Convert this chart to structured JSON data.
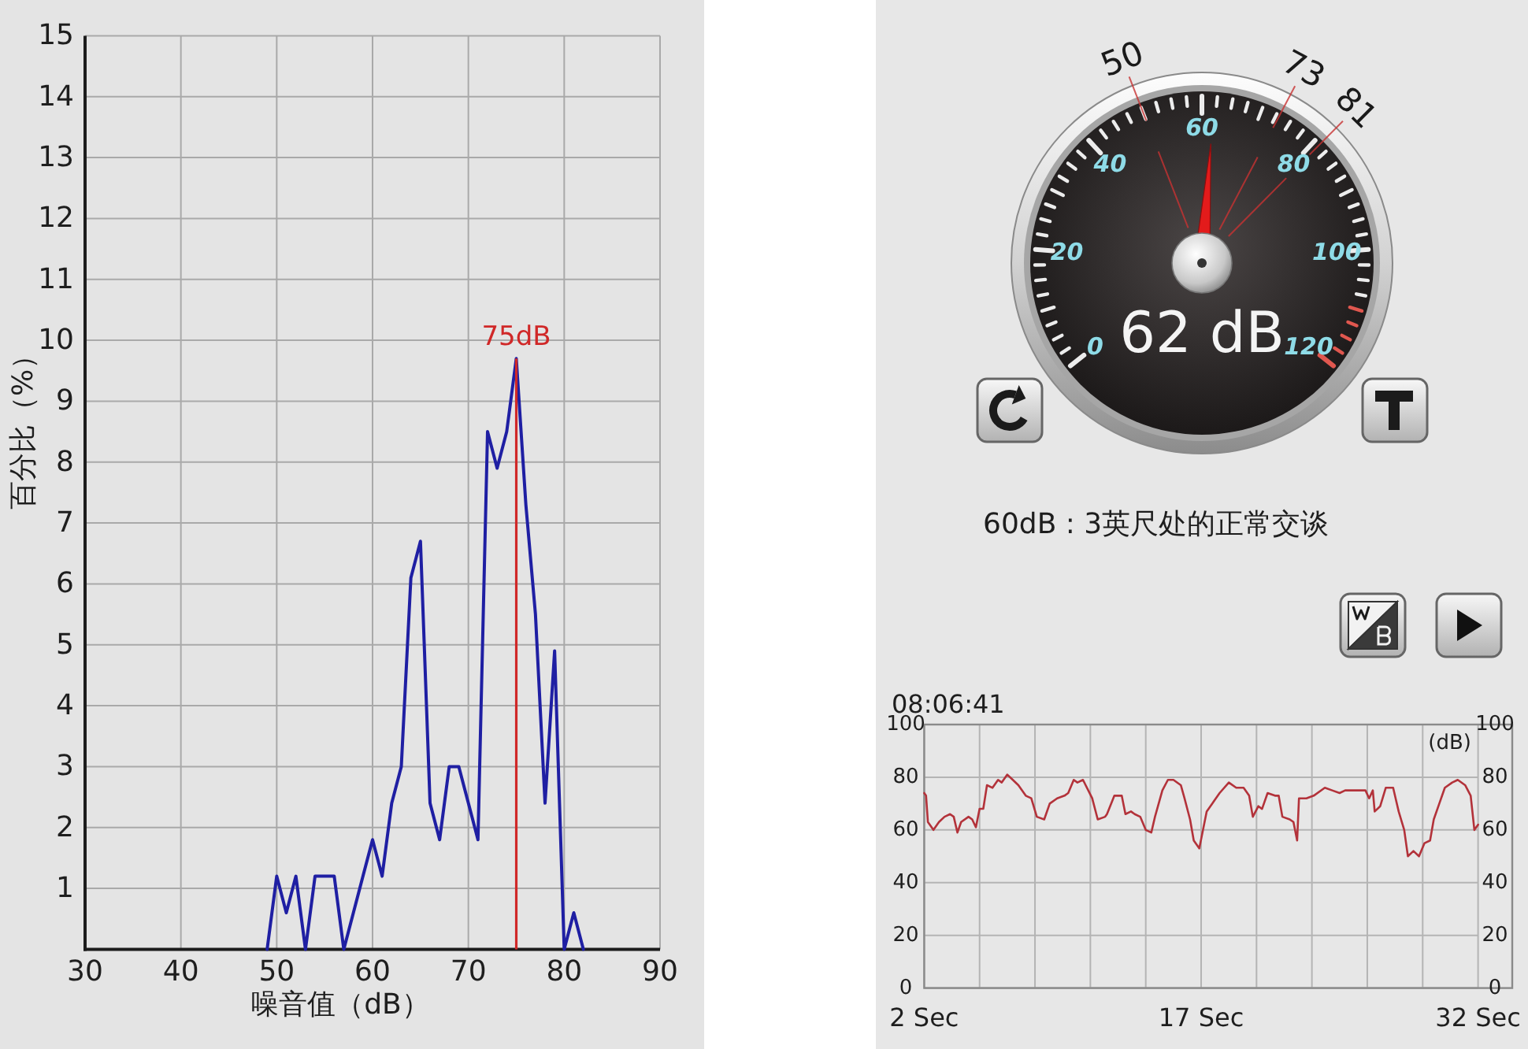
{
  "chart_data": [
    {
      "type": "line",
      "xlabel": "噪音值（dB）",
      "ylabel": "百分比（%）",
      "x": [
        49,
        50,
        51,
        52,
        53,
        54,
        55,
        56,
        57,
        58,
        59,
        60,
        61,
        62,
        63,
        64,
        65,
        66,
        67,
        68,
        69,
        70,
        71,
        72,
        73,
        74,
        75,
        76,
        77,
        78,
        79,
        80,
        81,
        82
      ],
      "series": [
        {
          "color": "#1f1fa3",
          "values": [
            0,
            1.2,
            0.6,
            1.2,
            0,
            1.2,
            1.2,
            1.2,
            0,
            0.6,
            1.2,
            1.8,
            1.2,
            2.4,
            3.0,
            6.1,
            6.7,
            2.4,
            1.8,
            3.0,
            3.0,
            2.4,
            1.8,
            8.5,
            7.9,
            8.5,
            9.7,
            7.3,
            5.5,
            2.4,
            4.9,
            0,
            0.6,
            0
          ]
        }
      ],
      "xlim": [
        30,
        90
      ],
      "ylim": [
        0,
        15
      ],
      "xticks": [
        30,
        40,
        50,
        60,
        70,
        80,
        90
      ],
      "yticks": [
        1,
        2,
        3,
        4,
        5,
        6,
        7,
        8,
        9,
        10,
        11,
        12,
        13,
        14,
        15
      ],
      "grid": true,
      "ref_lines": [
        {
          "axis": "x",
          "value": 75,
          "label": "75dB",
          "color": "#d02828"
        }
      ]
    },
    {
      "type": "other",
      "annotations": [
        "0",
        "20",
        "40",
        "60",
        "80",
        "100",
        "120",
        "50",
        "73",
        "81",
        "62 dB",
        "60dB : 3英尺处的正常交谈"
      ]
    },
    {
      "type": "line",
      "title": "08:06:41",
      "y2label": "(dB)",
      "x": [
        2.0,
        2.1,
        2.2,
        2.5,
        2.8,
        3.1,
        3.4,
        3.6,
        3.8,
        4.0,
        4.4,
        4.6,
        4.8,
        5.0,
        5.2,
        5.4,
        5.7,
        6.0,
        6.2,
        6.5,
        6.8,
        7.1,
        7.5,
        7.8,
        8.1,
        8.5,
        8.8,
        9.2,
        9.6,
        9.8,
        10.1,
        10.3,
        10.6,
        11.1,
        11.4,
        11.8,
        11.9,
        12.3,
        12.7,
        12.9,
        13.2,
        13.4,
        13.7,
        14.0,
        14.3,
        14.5,
        14.9,
        15.2,
        15.5,
        15.9,
        16.1,
        16.4,
        16.6,
        16.9,
        17.3,
        17.6,
        18.0,
        18.5,
        18.9,
        19.3,
        19.6,
        19.8,
        20.1,
        20.3,
        20.6,
        21.0,
        21.2,
        21.4,
        21.8,
        22.0,
        22.2,
        22.3,
        22.7,
        23.1,
        23.7,
        24.1,
        24.5,
        24.8,
        25.2,
        25.7,
        25.9,
        26.1,
        26.3,
        26.4,
        26.7,
        27.0,
        27.4,
        27.7,
        28.0,
        28.2,
        28.5,
        28.8,
        29.1,
        29.4,
        29.6,
        29.9,
        30.2,
        30.6,
        30.9,
        31.3,
        31.6,
        31.8,
        32.0
      ],
      "series": [
        {
          "color": "#b3323a",
          "values": [
            74,
            73,
            63,
            60,
            63,
            65,
            66,
            65,
            59,
            63,
            65,
            64,
            61,
            68,
            68,
            77,
            76,
            79,
            78,
            81,
            79,
            77,
            73,
            72,
            65,
            64,
            70,
            72,
            73,
            74,
            79,
            78,
            79,
            72,
            64,
            65,
            66,
            73,
            73,
            66,
            67,
            66,
            65,
            60,
            59,
            65,
            75,
            79,
            79,
            77,
            72,
            64,
            56,
            53,
            67,
            70,
            74,
            78,
            76,
            76,
            73,
            65,
            69,
            68,
            74,
            73,
            73,
            65,
            64,
            63,
            56,
            72,
            72,
            73,
            76,
            75,
            74,
            75,
            75,
            75,
            75,
            72,
            75,
            67,
            69,
            76,
            76,
            67,
            60,
            50,
            52,
            50,
            55,
            56,
            64,
            70,
            76,
            78,
            79,
            77,
            73,
            60,
            62
          ]
        }
      ],
      "xlim": [
        2,
        32
      ],
      "ylim": [
        0,
        100
      ],
      "y2lim": [
        0,
        100
      ],
      "xticks": [
        {
          "value": 2,
          "label": "2 Sec"
        },
        {
          "value": 5,
          "label": null
        },
        {
          "value": 8,
          "label": null
        },
        {
          "value": 11,
          "label": null
        },
        {
          "value": 14,
          "label": null
        },
        {
          "value": 17,
          "label": "17 Sec"
        },
        {
          "value": 20,
          "label": null
        },
        {
          "value": 23,
          "label": null
        },
        {
          "value": 26,
          "label": null
        },
        {
          "value": 29,
          "label": null
        },
        {
          "value": 32,
          "label": "32 Sec"
        }
      ],
      "yticks": [
        0,
        20,
        40,
        60,
        80,
        100
      ],
      "y2ticks": [
        0,
        20,
        40,
        60,
        80,
        100
      ],
      "grid": true
    }
  ]
}
